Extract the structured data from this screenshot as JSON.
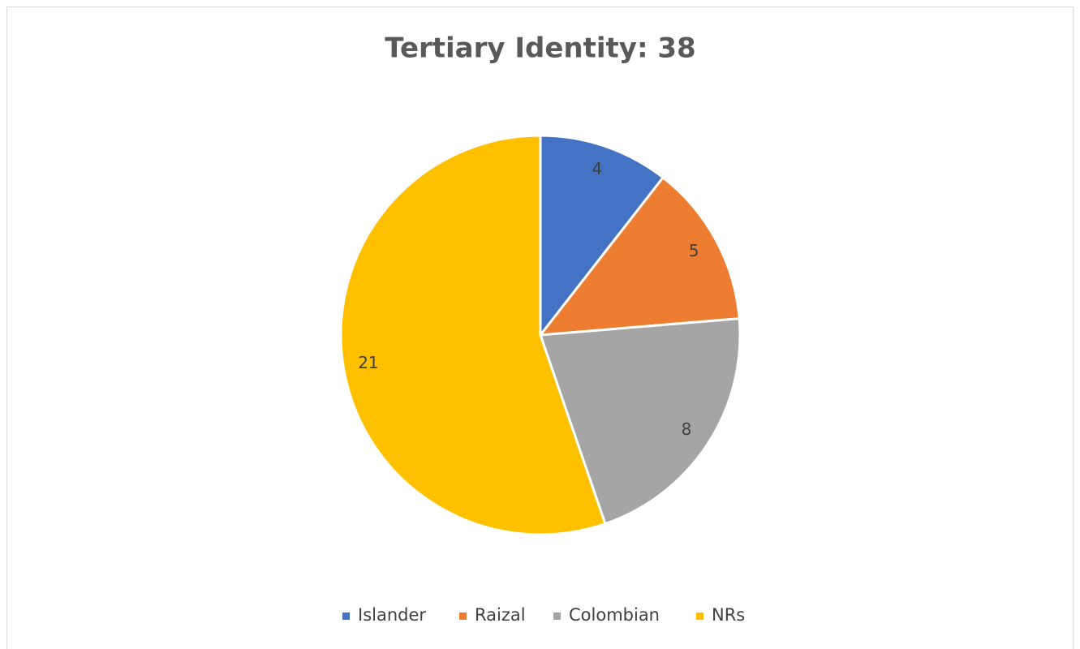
{
  "chart_data": {
    "type": "pie",
    "title": "Tertiary Identity: 38",
    "categories": [
      "Islander",
      "Raizal",
      "Colombian",
      "NRs"
    ],
    "values": [
      4,
      5,
      8,
      21
    ],
    "colors": [
      "#4472c4",
      "#ed7d31",
      "#a5a5a5",
      "#ffc000"
    ],
    "legend": "bottom"
  }
}
